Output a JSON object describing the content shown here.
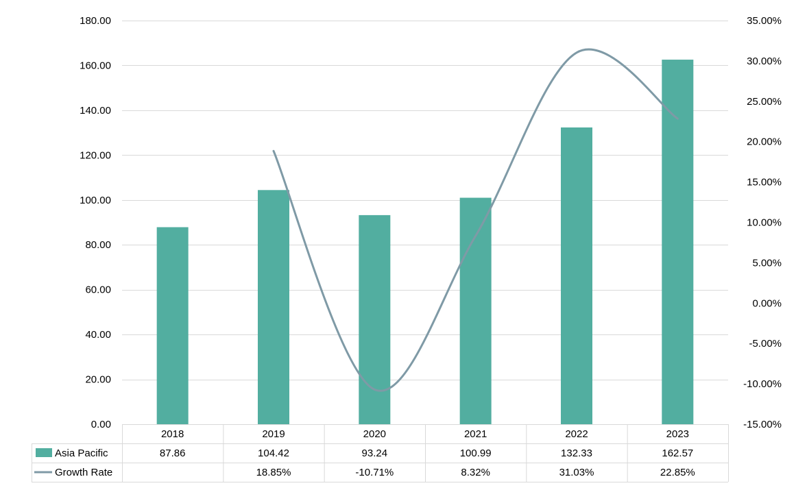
{
  "chart_data": {
    "type": "bar",
    "categories": [
      "2018",
      "2019",
      "2020",
      "2021",
      "2022",
      "2023"
    ],
    "series": [
      {
        "name": "Asia Pacific",
        "kind": "bar",
        "axis": "left",
        "color": "#52ae a0",
        "values": [
          87.86,
          104.42,
          93.24,
          100.99,
          132.33,
          162.57
        ],
        "labels": [
          "87.86",
          "104.42",
          "93.24",
          "100.99",
          "132.33",
          "162.57"
        ]
      },
      {
        "name": "Growth Rate",
        "kind": "line",
        "axis": "right",
        "color": "#7f9aa6",
        "values": [
          null,
          18.85,
          -10.71,
          8.32,
          31.03,
          22.85
        ],
        "labels": [
          "",
          "18.85%",
          "-10.71%",
          "8.32%",
          "31.03%",
          "22.85%"
        ]
      }
    ],
    "y_left": {
      "range": [
        0,
        180
      ],
      "ticks": [
        "0.00",
        "20.00",
        "40.00",
        "60.00",
        "80.00",
        "100.00",
        "120.00",
        "140.00",
        "160.00",
        "180.00"
      ]
    },
    "y_right": {
      "range": [
        -15,
        35
      ],
      "ticks": [
        "-15.00%",
        "-10.00%",
        "-5.00%",
        "0.00%",
        "5.00%",
        "10.00%",
        "15.00%",
        "20.00%",
        "25.00%",
        "30.00%",
        "35.00%"
      ]
    },
    "grid": true,
    "legend": "data-table-bottom"
  }
}
